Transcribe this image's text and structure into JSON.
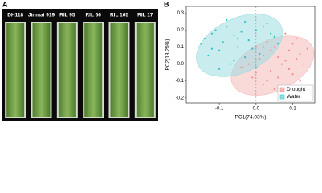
{
  "panel_a": {
    "label": "A",
    "samples": [
      "DH118",
      "Jinmai 919",
      "RIL 95",
      "RIL 66",
      "RIL 165",
      "RIL 17"
    ]
  },
  "panel_b_label": "B",
  "chart_data": {
    "type": "scatter",
    "x_label": "PC1(74.03%)",
    "y_label": "PC2(18.25%)",
    "xlim": [
      -0.19,
      0.16
    ],
    "xticks": [
      -0.1,
      {
        "value": 0,
        "label": "0.0"
      },
      0.1
    ],
    "ylim": [
      -0.23,
      0.34
    ],
    "yticks": [
      -0.2,
      -0.1,
      {
        "value": 0,
        "label": "0.0"
      },
      0.1,
      0.2,
      0.3
    ],
    "zero_lines": true,
    "legend": "lower right",
    "series": [
      {
        "name": "Drought",
        "color": "#f28b8b",
        "ellipse_color": "#f6b9b9",
        "ellipse": {
          "cx": 0.045,
          "cy": -0.01,
          "rx": 0.12,
          "ry": 0.15,
          "angle": -25
        },
        "x": [
          0.02,
          0.05,
          0.08,
          0.1,
          0.12,
          0.0,
          -0.02,
          0.03,
          0.06,
          0.09,
          0.11,
          0.13,
          0.04,
          0.07,
          -0.04,
          0.01,
          0.05,
          0.08,
          0.1,
          0.02,
          0.06,
          0.09,
          0.12,
          0.03,
          -0.01,
          0.07,
          0.04,
          0.11,
          0.14,
          0.0
        ],
        "values": [
          0.05,
          0.1,
          0.02,
          0.12,
          0.06,
          -0.05,
          0.0,
          -0.1,
          -0.08,
          -0.03,
          0.15,
          0.0,
          0.08,
          -0.13,
          -0.02,
          0.03,
          -0.15,
          0.18,
          -0.06,
          -0.12,
          0.04,
          0.08,
          -0.1,
          0.13,
          -0.08,
          0.0,
          -0.04,
          0.03,
          0.09,
          0.1
        ]
      },
      {
        "name": "Water",
        "color": "#3bbfc9",
        "ellipse_color": "#9ddde2",
        "ellipse": {
          "cx": -0.045,
          "cy": 0.11,
          "rx": 0.125,
          "ry": 0.16,
          "angle": -25
        },
        "x": [
          -0.15,
          -0.12,
          -0.1,
          -0.08,
          -0.05,
          -0.03,
          0.0,
          0.02,
          0.05,
          -0.13,
          -0.09,
          -0.06,
          -0.04,
          -0.01,
          0.03,
          -0.11,
          -0.07,
          -0.02,
          0.01,
          0.04,
          -0.14,
          -0.08,
          -0.05,
          0.0,
          0.06,
          -0.1,
          -0.03,
          -0.06,
          -0.12,
          0.02
        ],
        "values": [
          0.12,
          0.18,
          0.08,
          0.22,
          0.15,
          0.25,
          0.2,
          0.1,
          0.16,
          0.05,
          0.13,
          0.02,
          0.19,
          0.09,
          0.24,
          0.2,
          0.0,
          0.14,
          0.06,
          0.18,
          0.15,
          0.26,
          0.1,
          -0.02,
          0.12,
          -0.03,
          0.04,
          0.17,
          0.09,
          0.22
        ]
      }
    ]
  }
}
